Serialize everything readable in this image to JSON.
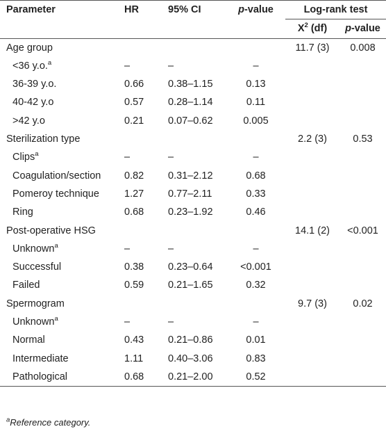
{
  "header": {
    "parameter": "Parameter",
    "hr": "HR",
    "ci": "95% CI",
    "p_italic": "p",
    "p_rest": "-value",
    "logrank": "Log-rank test",
    "chi_main": "X",
    "chi_sup": "2",
    "chi_rest": " (df)",
    "lp_italic": "p",
    "lp_rest": "-value"
  },
  "rows": [
    {
      "label": "Age group",
      "sup": "",
      "hr": "",
      "ci": "",
      "p": "",
      "chi": "11.7 (3)",
      "lp": "0.008"
    },
    {
      "label": "<36 y.o.",
      "sup": "a",
      "hr": "–",
      "ci": "–",
      "p": "–",
      "chi": "",
      "lp": ""
    },
    {
      "label": "36-39 y.o.",
      "sup": "",
      "hr": "0.66",
      "ci": "0.38–1.15",
      "p": "0.13",
      "chi": "",
      "lp": ""
    },
    {
      "label": "40-42 y.o",
      "sup": "",
      "hr": "0.57",
      "ci": "0.28–1.14",
      "p": "0.11",
      "chi": "",
      "lp": ""
    },
    {
      "label": ">42 y.o",
      "sup": "",
      "hr": "0.21",
      "ci": "0.07–0.62",
      "p": "0.005",
      "chi": "",
      "lp": ""
    },
    {
      "label": "Sterilization type",
      "sup": "",
      "hr": "",
      "ci": "",
      "p": "",
      "chi": "2.2 (3)",
      "lp": "0.53"
    },
    {
      "label": "Clips",
      "sup": "a",
      "hr": "–",
      "ci": "–",
      "p": "–",
      "chi": "",
      "lp": ""
    },
    {
      "label": "Coagulation/section",
      "sup": "",
      "hr": "0.82",
      "ci": "0.31–2.12",
      "p": "0.68",
      "chi": "",
      "lp": ""
    },
    {
      "label": "Pomeroy technique",
      "sup": "",
      "hr": "1.27",
      "ci": "0.77–2.11",
      "p": "0.33",
      "chi": "",
      "lp": ""
    },
    {
      "label": "Ring",
      "sup": "",
      "hr": "0.68",
      "ci": "0.23–1.92",
      "p": "0.46",
      "chi": "",
      "lp": ""
    },
    {
      "label": "Post-operative HSG",
      "sup": "",
      "hr": "",
      "ci": "",
      "p": "",
      "chi": "14.1 (2)",
      "lp": "<0.001"
    },
    {
      "label": "Unknown",
      "sup": "a",
      "hr": "–",
      "ci": "–",
      "p": "–",
      "chi": "",
      "lp": ""
    },
    {
      "label": "Successful",
      "sup": "",
      "hr": "0.38",
      "ci": "0.23–0.64",
      "p": "<0.001",
      "chi": "",
      "lp": ""
    },
    {
      "label": "Failed",
      "sup": "",
      "hr": "0.59",
      "ci": "0.21–1.65",
      "p": "0.32",
      "chi": "",
      "lp": ""
    },
    {
      "label": "Spermogram",
      "sup": "",
      "hr": "",
      "ci": "",
      "p": "",
      "chi": "9.7 (3)",
      "lp": "0.02"
    },
    {
      "label": "Unknown",
      "sup": "a",
      "hr": "–",
      "ci": "–",
      "p": "–",
      "chi": "",
      "lp": ""
    },
    {
      "label": "Normal",
      "sup": "",
      "hr": "0.43",
      "ci": "0.21–0.86",
      "p": "0.01",
      "chi": "",
      "lp": ""
    },
    {
      "label": "Intermediate",
      "sup": "",
      "hr": "1.11",
      "ci": "0.40–3.06",
      "p": "0.83",
      "chi": "",
      "lp": ""
    },
    {
      "label": "Pathological",
      "sup": "",
      "hr": "0.68",
      "ci": "0.21–2.00",
      "p": "0.52",
      "chi": "",
      "lp": ""
    }
  ],
  "footnote": {
    "sup": "a",
    "text": "Reference category."
  }
}
